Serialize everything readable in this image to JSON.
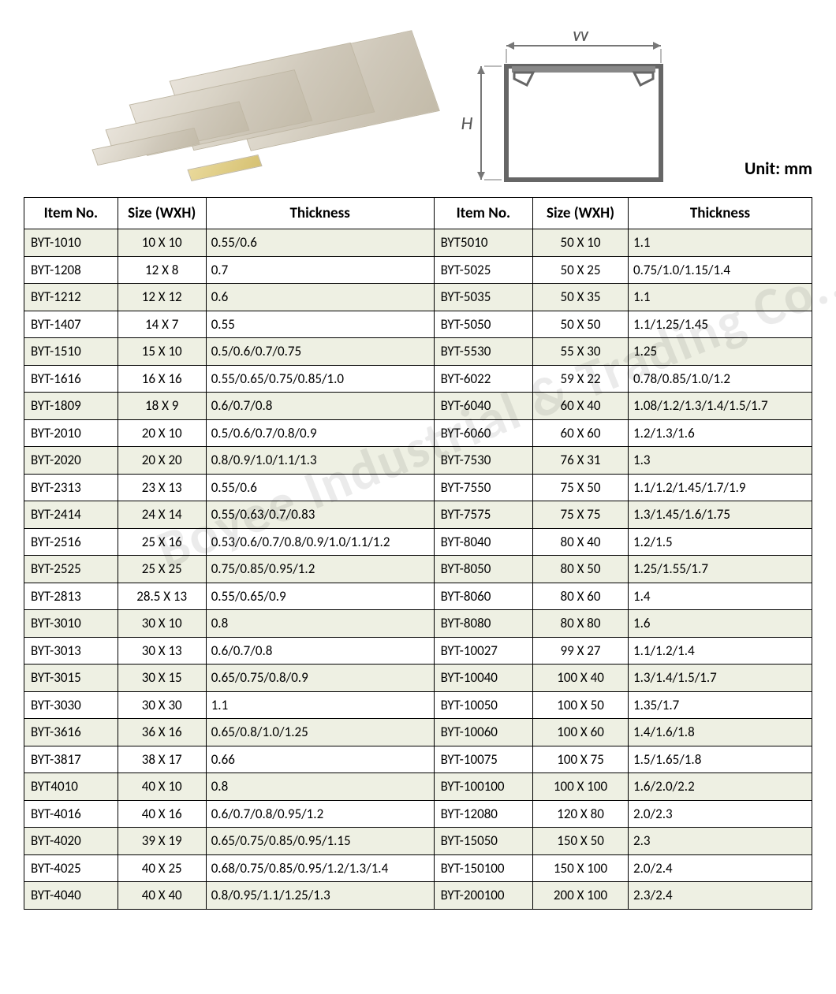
{
  "unit_label": "Unit: mm",
  "diagram": {
    "W_label": "W",
    "H_label": "H"
  },
  "watermark_text": "Boyee Industrial & Trading Co., Limited",
  "columns": [
    "Item No.",
    "Size (WXH)",
    "Thickness",
    "Item No.",
    "Size (WXH)",
    "Thickness"
  ],
  "row_shade_color": "#eef0e3",
  "border_color": "#000000",
  "font_family": "Calibri",
  "rows": [
    {
      "a": [
        "BYT-1010",
        "10 X 10",
        "0.55/0.6"
      ],
      "b": [
        "BYT5010",
        "50 X 10",
        "1.1"
      ]
    },
    {
      "a": [
        "BYT-1208",
        "12 X 8",
        "0.7"
      ],
      "b": [
        "BYT-5025",
        "50 X 25",
        "0.75/1.0/1.15/1.4"
      ]
    },
    {
      "a": [
        "BYT-1212",
        "12 X 12",
        "0.6"
      ],
      "b": [
        "BYT-5035",
        "50 X 35",
        "1.1"
      ]
    },
    {
      "a": [
        "BYT-1407",
        "14 X 7",
        "0.55"
      ],
      "b": [
        "BYT-5050",
        "50 X 50",
        "1.1/1.25/1.45"
      ]
    },
    {
      "a": [
        "BYT-1510",
        "15 X 10",
        "0.5/0.6/0.7/0.75"
      ],
      "b": [
        "BYT-5530",
        "55 X 30",
        "1.25"
      ]
    },
    {
      "a": [
        "BYT-1616",
        "16 X 16",
        "0.55/0.65/0.75/0.85/1.0"
      ],
      "b": [
        "BYT-6022",
        "59 X 22",
        "0.78/0.85/1.0/1.2"
      ]
    },
    {
      "a": [
        "BYT-1809",
        "18 X 9",
        "0.6/0.7/0.8"
      ],
      "b": [
        "BYT-6040",
        "60 X 40",
        "1.08/1.2/1.3/1.4/1.5/1.7"
      ]
    },
    {
      "a": [
        "BYT-2010",
        "20 X 10",
        "0.5/0.6/0.7/0.8/0.9"
      ],
      "b": [
        "BYT-6060",
        "60 X 60",
        "1.2/1.3/1.6"
      ]
    },
    {
      "a": [
        "BYT-2020",
        "20 X 20",
        "0.8/0.9/1.0/1.1/1.3"
      ],
      "b": [
        "BYT-7530",
        "76 X 31",
        "1.3"
      ]
    },
    {
      "a": [
        "BYT-2313",
        "23 X 13",
        "0.55/0.6"
      ],
      "b": [
        "BYT-7550",
        "75 X 50",
        "1.1/1.2/1.45/1.7/1.9"
      ]
    },
    {
      "a": [
        "BYT-2414",
        "24 X 14",
        "0.55/0.63/0.7/0.83"
      ],
      "b": [
        "BYT-7575",
        "75 X 75",
        "1.3/1.45/1.6/1.75"
      ]
    },
    {
      "a": [
        "BYT-2516",
        "25 X 16",
        "0.53/0.6/0.7/0.8/0.9/1.0/1.1/1.2"
      ],
      "b": [
        "BYT-8040",
        "80 X 40",
        "1.2/1.5"
      ]
    },
    {
      "a": [
        "BYT-2525",
        "25 X 25",
        "0.75/0.85/0.95/1.2"
      ],
      "b": [
        "BYT-8050",
        "80 X 50",
        "1.25/1.55/1.7"
      ]
    },
    {
      "a": [
        "BYT-2813",
        "28.5 X 13",
        "0.55/0.65/0.9"
      ],
      "b": [
        "BYT-8060",
        "80 X 60",
        "1.4"
      ]
    },
    {
      "a": [
        "BYT-3010",
        "30 X 10",
        "0.8"
      ],
      "b": [
        "BYT-8080",
        "80 X 80",
        "1.6"
      ]
    },
    {
      "a": [
        "BYT-3013",
        "30 X 13",
        "0.6/0.7/0.8"
      ],
      "b": [
        "BYT-10027",
        "99 X 27",
        "1.1/1.2/1.4"
      ]
    },
    {
      "a": [
        "BYT-3015",
        "30 X 15",
        "0.65/0.75/0.8/0.9"
      ],
      "b": [
        "BYT-10040",
        "100 X 40",
        "1.3/1.4/1.5/1.7"
      ]
    },
    {
      "a": [
        "BYT-3030",
        "30 X 30",
        "1.1"
      ],
      "b": [
        "BYT-10050",
        "100 X 50",
        "1.35/1.7"
      ]
    },
    {
      "a": [
        "BYT-3616",
        "36 X 16",
        "0.65/0.8/1.0/1.25"
      ],
      "b": [
        "BYT-10060",
        "100 X 60",
        "1.4/1.6/1.8"
      ]
    },
    {
      "a": [
        "BYT-3817",
        "38 X 17",
        "0.66"
      ],
      "b": [
        "BYT-10075",
        "100 X 75",
        "1.5/1.65/1.8"
      ]
    },
    {
      "a": [
        "BYT4010",
        "40 X 10",
        "0.8"
      ],
      "b": [
        "BYT-100100",
        "100 X 100",
        "1.6/2.0/2.2"
      ]
    },
    {
      "a": [
        "BYT-4016",
        "40 X 16",
        "0.6/0.7/0.8/0.95/1.2"
      ],
      "b": [
        "BYT-12080",
        "120 X 80",
        "2.0/2.3"
      ]
    },
    {
      "a": [
        "BYT-4020",
        "39 X 19",
        "0.65/0.75/0.85/0.95/1.15"
      ],
      "b": [
        "BYT-15050",
        "150 X 50",
        "2.3"
      ]
    },
    {
      "a": [
        "BYT-4025",
        "40 X 25",
        "0.68/0.75/0.85/0.95/1.2/1.3/1.4"
      ],
      "b": [
        "BYT-150100",
        "150 X 100",
        "2.0/2.4"
      ]
    },
    {
      "a": [
        "BYT-4040",
        "40 X 40",
        "0.8/0.95/1.1/1.25/1.3"
      ],
      "b": [
        "BYT-200100",
        "200 X 100",
        "2.3/2.4"
      ]
    }
  ]
}
